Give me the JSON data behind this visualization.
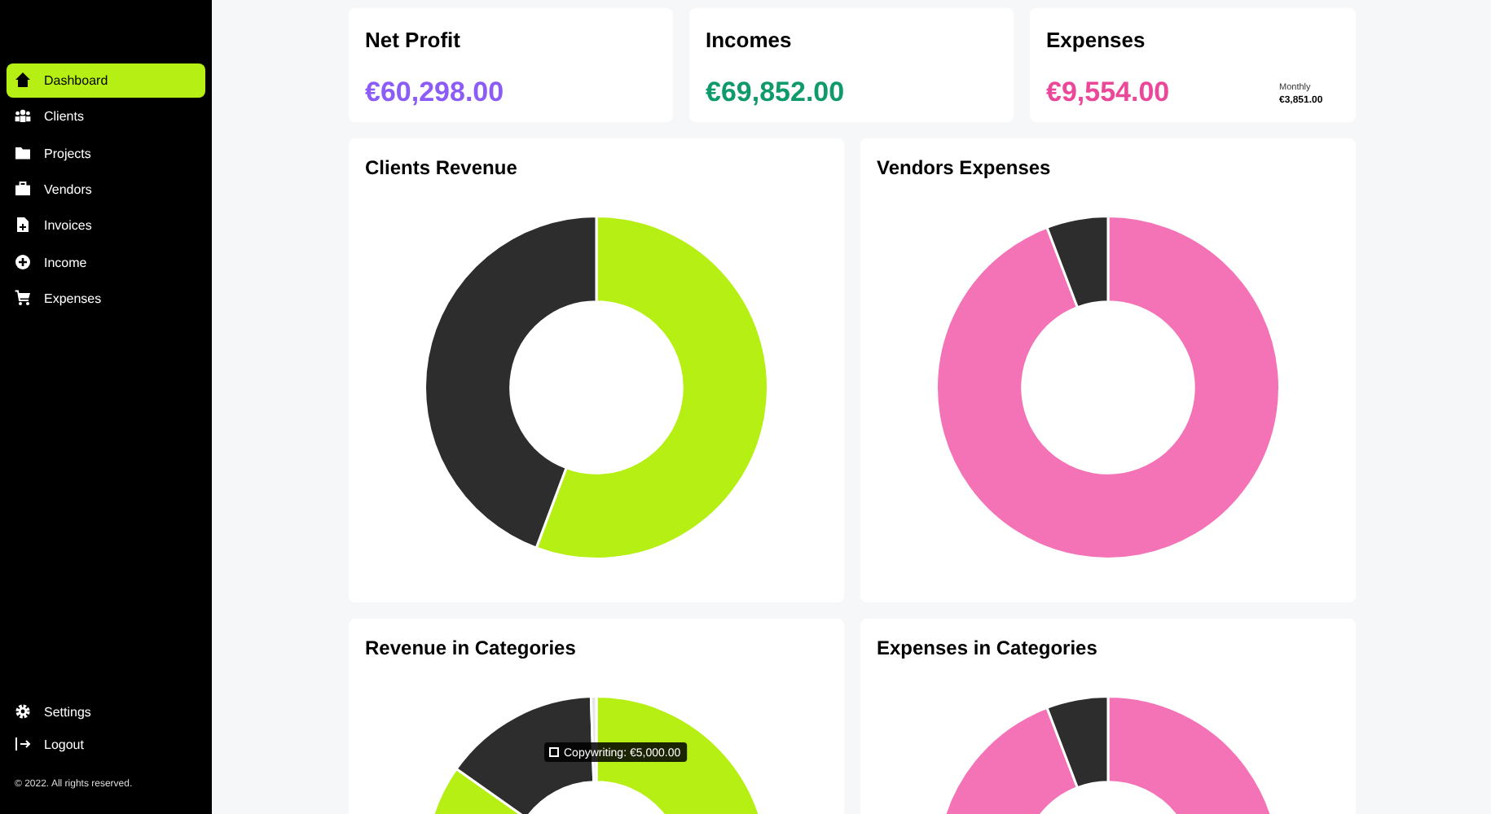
{
  "chart_data": [
    {
      "type": "other",
      "annotations": [
        "Dashboard",
        "Clients",
        "Projects",
        "Vendors",
        "Invoices",
        "Income",
        "Expenses",
        "Settings",
        "Logout",
        "© 2022. All rights reserved."
      ]
    },
    {
      "type": "other",
      "title": "Net Profit",
      "annotations": [
        "€60,298.00"
      ],
      "color": "#8b5cf6"
    },
    {
      "type": "other",
      "title": "Incomes",
      "annotations": [
        "€69,852.00"
      ],
      "color": "#0f9a6a"
    },
    {
      "type": "other",
      "title": "Expenses",
      "annotations": [
        "€9,554.00",
        "Monthly",
        "€3,851.00"
      ],
      "color": "#ec4899"
    },
    {
      "type": "donut",
      "title": "Clients Revenue",
      "categories": [
        null,
        null
      ],
      "values": [
        55.7,
        44.3
      ],
      "colors": [
        "#b5ef14",
        "#2d2d2d"
      ]
    },
    {
      "type": "donut",
      "title": "Vendors Expenses",
      "categories": [
        null,
        null
      ],
      "values": [
        94.2,
        5.8
      ],
      "colors": [
        "#f472b6",
        "#2d2d2d"
      ]
    },
    {
      "type": "donut",
      "title": "Revenue in Categories",
      "categories": [
        null,
        null,
        null,
        null
      ],
      "values": [
        55,
        29.8,
        14.7,
        0.5
      ],
      "colors": [
        "#b5ef14",
        "#b5ef14",
        "#2d2d2d",
        "#e5e5e5"
      ],
      "annotations": [
        "Copywriting: €5,000.00"
      ]
    },
    {
      "type": "donut",
      "title": "Expenses in Categories",
      "categories": [
        null,
        null,
        null
      ],
      "values": [
        60,
        34.2,
        5.8
      ],
      "colors": [
        "#f472b6",
        "#f472b6",
        "#2d2d2d"
      ]
    }
  ]
}
